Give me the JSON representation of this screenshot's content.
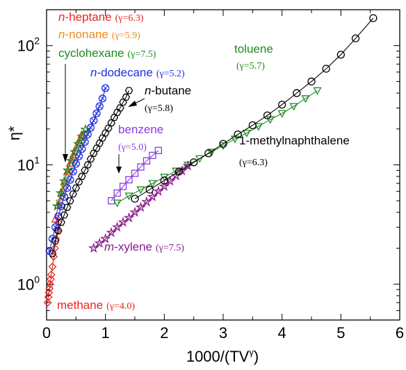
{
  "chart_data": {
    "type": "scatter",
    "title": "",
    "xlabel": {
      "main": "1000/(TV",
      "sup": "γ",
      "end": ")"
    },
    "ylabel": "η*",
    "xlim": [
      0,
      6
    ],
    "ylim": [
      0.5,
      200
    ],
    "yscale": "log",
    "xticks": [
      0,
      1,
      2,
      3,
      4,
      5,
      6
    ],
    "yticks": [
      {
        "value": 1,
        "base": "10",
        "exp": "0"
      },
      {
        "value": 10,
        "base": "10",
        "exp": "1"
      },
      {
        "value": 100,
        "base": "10",
        "exp": "2"
      }
    ],
    "grid": false,
    "series": [
      {
        "name": "methane",
        "label": {
          "prefix": "",
          "main": "methane",
          "gamma": "(γ=4.0)"
        },
        "color": "#e8251f",
        "marker": "diamond",
        "x": [
          0.02,
          0.03,
          0.04,
          0.05,
          0.06,
          0.07,
          0.08,
          0.1,
          0.12,
          0.14,
          0.16,
          0.18,
          0.2
        ],
        "y": [
          0.7,
          0.78,
          0.85,
          0.92,
          1.0,
          1.1,
          1.2,
          1.4,
          1.7,
          2.0,
          2.4,
          2.8,
          3.3
        ]
      },
      {
        "name": "n-heptane",
        "label": {
          "prefix": "n",
          "main": "-heptane",
          "gamma": "(γ=6.3)"
        },
        "color": "#e8251f",
        "marker": "triangle-up",
        "x": [
          0.15,
          0.2,
          0.25,
          0.3,
          0.35,
          0.4,
          0.45,
          0.5,
          0.55,
          0.6
        ],
        "y": [
          3.5,
          4.6,
          5.8,
          7.2,
          8.7,
          10.3,
          12.0,
          13.8,
          15.8,
          18.0
        ]
      },
      {
        "name": "n-nonane",
        "label": {
          "prefix": "n",
          "main": "-nonane",
          "gamma": "(γ=5.9)"
        },
        "color": "#f08a1c",
        "marker": "triangle-down",
        "x": [
          0.22,
          0.3,
          0.38,
          0.46,
          0.54,
          0.62
        ],
        "y": [
          4.8,
          6.5,
          8.6,
          11.0,
          13.8,
          17.0
        ]
      },
      {
        "name": "cyclohexane",
        "label": {
          "prefix": "",
          "main": "cyclohexane",
          "gamma": "(γ=7.5)"
        },
        "color": "#1e8a1e",
        "marker": "star",
        "x": [
          0.18,
          0.24,
          0.3,
          0.36,
          0.42,
          0.48,
          0.54,
          0.6,
          0.66
        ],
        "y": [
          4.5,
          5.8,
          7.3,
          9.0,
          10.8,
          12.8,
          15.0,
          17.3,
          19.8
        ]
      },
      {
        "name": "n-dodecane",
        "label": {
          "prefix": "n",
          "main": "-dodecane",
          "gamma": "(γ=5.2)"
        },
        "color": "#1a2ee0",
        "marker": "circle-x",
        "x": [
          0.05,
          0.1,
          0.15,
          0.2,
          0.25,
          0.3,
          0.35,
          0.4,
          0.45,
          0.5,
          0.55,
          0.6,
          0.65,
          0.7,
          0.75,
          0.8,
          0.85,
          0.9,
          0.95,
          1.0
        ],
        "y": [
          1.9,
          2.4,
          3.0,
          3.7,
          4.5,
          5.4,
          6.4,
          7.5,
          8.8,
          10.2,
          11.8,
          13.6,
          15.6,
          18.0,
          20.5,
          23.5,
          27.0,
          31.0,
          36.0,
          44.0
        ]
      },
      {
        "name": "n-butane",
        "label": {
          "prefix": "n",
          "main": "-butane",
          "gamma": "(γ=5.8)"
        },
        "color": "#000000",
        "marker": "hexagon",
        "x": [
          0.1,
          0.15,
          0.2,
          0.25,
          0.3,
          0.35,
          0.4,
          0.45,
          0.5,
          0.55,
          0.6,
          0.65,
          0.7,
          0.75,
          0.8,
          0.85,
          0.9,
          0.95,
          1.0,
          1.05,
          1.1,
          1.15,
          1.2,
          1.25,
          1.3,
          1.35,
          1.4
        ],
        "y": [
          1.8,
          2.3,
          2.8,
          3.3,
          3.8,
          4.4,
          5.0,
          5.7,
          6.4,
          7.2,
          8.0,
          9.0,
          10.0,
          11.2,
          12.5,
          13.8,
          15.2,
          16.8,
          18.5,
          20.3,
          22.5,
          25.0,
          27.5,
          30.0,
          33.5,
          37.0,
          42.0
        ]
      },
      {
        "name": "benzene",
        "label": {
          "prefix": "",
          "main": "benzene",
          "gamma": "(γ=5.0)"
        },
        "color": "#8a3ae0",
        "marker": "square",
        "x": [
          1.1,
          1.2,
          1.3,
          1.4,
          1.5,
          1.6,
          1.7,
          1.8,
          1.9
        ],
        "y": [
          5.0,
          5.8,
          6.6,
          7.5,
          8.5,
          9.6,
          10.8,
          12.0,
          13.2
        ]
      },
      {
        "name": "toluene",
        "label": {
          "prefix": "",
          "main": "toluene",
          "gamma": "(γ=5.7)"
        },
        "color": "#1e8a1e",
        "marker": "triangle-down",
        "x": [
          1.2,
          1.4,
          1.6,
          1.8,
          2.0,
          2.2,
          2.4,
          2.6,
          2.8,
          3.0,
          3.2,
          3.4,
          3.6,
          3.8,
          4.0,
          4.2,
          4.4,
          4.6
        ],
        "y": [
          4.8,
          5.5,
          6.2,
          7.0,
          7.9,
          8.9,
          10.0,
          11.3,
          12.8,
          14.5,
          16.5,
          18.5,
          21.0,
          24.0,
          27.0,
          31.0,
          36.0,
          42.0
        ]
      },
      {
        "name": "m-xylene",
        "label": {
          "prefix": "m",
          "main": "-xylene",
          "gamma": "(γ=7.5)"
        },
        "color": "#8a1a8a",
        "marker": "star",
        "x": [
          0.8,
          0.9,
          1.0,
          1.1,
          1.2,
          1.3,
          1.4,
          1.5,
          1.6,
          1.7,
          1.8,
          1.9,
          2.0,
          2.1,
          2.2,
          2.3,
          2.4
        ],
        "y": [
          2.0,
          2.2,
          2.4,
          2.7,
          3.0,
          3.3,
          3.6,
          4.0,
          4.4,
          4.9,
          5.4,
          6.0,
          6.6,
          7.3,
          8.1,
          8.9,
          9.8
        ]
      },
      {
        "name": "1-methylnaphthalene",
        "label": {
          "prefix": "",
          "main": "1-methylnaphthalene",
          "gamma": "(γ=6.3)"
        },
        "color": "#000000",
        "marker": "circle",
        "x": [
          1.5,
          1.75,
          2.0,
          2.25,
          2.5,
          2.75,
          3.0,
          3.25,
          3.5,
          3.75,
          4.0,
          4.25,
          4.5,
          4.75,
          5.0,
          5.25,
          5.55
        ],
        "y": [
          5.2,
          6.2,
          7.4,
          8.8,
          10.5,
          12.5,
          15.0,
          18.0,
          21.5,
          26.0,
          32.0,
          40.0,
          50.0,
          64.0,
          84.0,
          115.0,
          170.0
        ]
      }
    ]
  }
}
